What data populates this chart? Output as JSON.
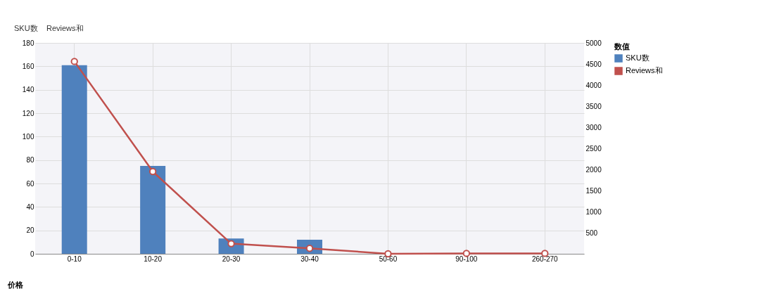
{
  "chart_data": {
    "type": "bar",
    "categories": [
      "0-10",
      "10-20",
      "20-30",
      "30-40",
      "50-60",
      "90-100",
      "260-270"
    ],
    "series": [
      {
        "name": "SKU数",
        "color": "#4f81bd",
        "values": [
          161,
          75,
          13,
          12,
          0,
          0,
          0
        ]
      },
      {
        "name": "Reviews和",
        "type": "line",
        "axis": "y2",
        "color": "#c0504d",
        "marker": "circle",
        "values": [
          4560,
          1950,
          240,
          130,
          0,
          10,
          10
        ]
      }
    ],
    "ylim": [
      0,
      180
    ],
    "yticks": [
      0,
      20,
      40,
      60,
      80,
      100,
      120,
      140,
      160,
      180
    ],
    "y2lim": [
      0,
      5000
    ],
    "y2ticks": [
      500,
      1000,
      1500,
      2000,
      2500,
      3000,
      3500,
      4000,
      4500,
      5000
    ],
    "xlabel": "价格",
    "legend_title": "数值",
    "legend": "right",
    "grid": true,
    "annotations": [
      "SKU数",
      "Reviews和"
    ]
  }
}
